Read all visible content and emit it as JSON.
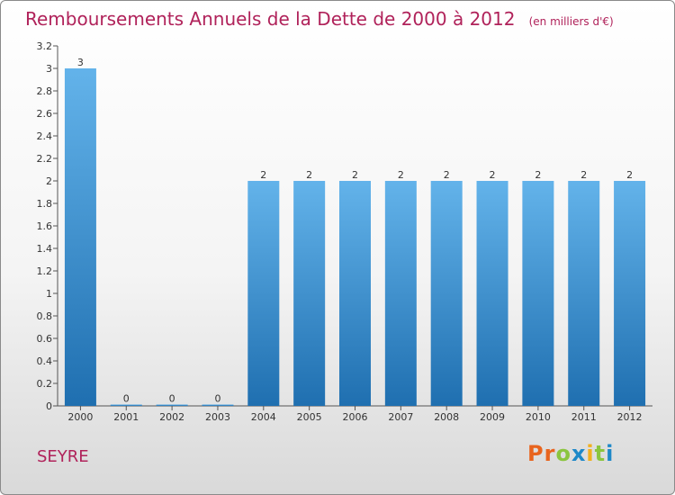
{
  "title": "Remboursements Annuels de la Dette de 2000 à 2012",
  "unit": "(en milliers d'€)",
  "place": "SEYRE",
  "logo": {
    "text": "Proxiti",
    "colors": [
      "#e8641e",
      "#e8641e",
      "#8bc53f",
      "#1e88c8",
      "#f2b01e",
      "#8bc53f",
      "#1e88c8"
    ]
  },
  "chart_data": {
    "type": "bar",
    "categories": [
      "2000",
      "2001",
      "2002",
      "2003",
      "2004",
      "2005",
      "2006",
      "2007",
      "2008",
      "2009",
      "2010",
      "2011",
      "2012"
    ],
    "values": [
      3,
      0,
      0,
      0,
      2,
      2,
      2,
      2,
      2,
      2,
      2,
      2,
      2
    ],
    "data_labels": [
      "3",
      "0",
      "0",
      "0",
      "2",
      "2",
      "2",
      "2",
      "2",
      "2",
      "2",
      "2",
      "2"
    ],
    "ylim": [
      0,
      3.2
    ],
    "y_ticks": [
      {
        "v": 0,
        "label": "0"
      },
      {
        "v": 0.2,
        "label": "0.2"
      },
      {
        "v": 0.4,
        "label": "0.4"
      },
      {
        "v": 0.6,
        "label": "0.6"
      },
      {
        "v": 0.8,
        "label": "0.8"
      },
      {
        "v": 1.0,
        "label": "1"
      },
      {
        "v": 1.2,
        "label": "1.2"
      },
      {
        "v": 1.4,
        "label": "1.4"
      },
      {
        "v": 1.6,
        "label": "1.6"
      },
      {
        "v": 1.8,
        "label": "1.8"
      },
      {
        "v": 2.0,
        "label": "2"
      },
      {
        "v": 2.2,
        "label": "2.2"
      },
      {
        "v": 2.4,
        "label": "2.4"
      },
      {
        "v": 2.6,
        "label": "2.6"
      },
      {
        "v": 2.8,
        "label": "2.8"
      },
      {
        "v": 3.0,
        "label": "3"
      },
      {
        "v": 3.2,
        "label": "3.2"
      }
    ],
    "bar_color": "#3a8fd0",
    "grid": false,
    "legend": "none"
  }
}
